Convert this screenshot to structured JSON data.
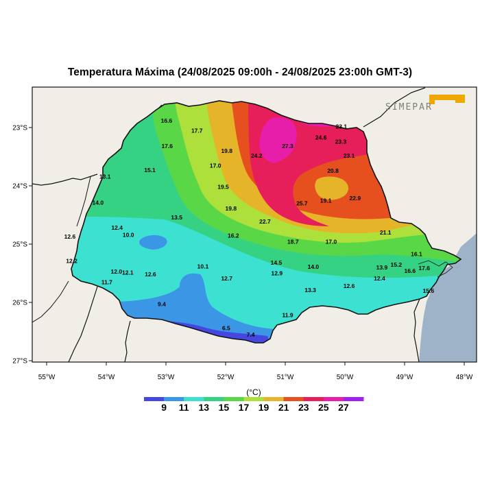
{
  "title": "Temperatura Máxima (24/08/2025 09:00h - 24/08/2025 23:00h GMT-3)",
  "logo": {
    "text": "SIMEPAR",
    "accent": "#f0a800"
  },
  "axes": {
    "lat_labels": [
      "23°S",
      "24°S",
      "25°S",
      "26°S",
      "27°S"
    ],
    "lon_labels": [
      "55°W",
      "54°W",
      "53°W",
      "52°W",
      "51°W",
      "50°W",
      "49°W",
      "48°W"
    ]
  },
  "colorbar": {
    "unit": "(°C)",
    "labels": [
      "9",
      "11",
      "13",
      "15",
      "17",
      "19",
      "21",
      "23",
      "25",
      "27"
    ],
    "colors": [
      "#4646e0",
      "#3c96e6",
      "#3ce1d2",
      "#35d283",
      "#5ad746",
      "#aee03c",
      "#e6b428",
      "#e6501e",
      "#e61e5a",
      "#e61eaa",
      "#a020f0"
    ]
  },
  "colors": {
    "land": "#f0eee6",
    "ocean": "#9eb3c8",
    "border": "#111111"
  },
  "station_values": [
    {
      "label": "16.6",
      "lon": -52.99,
      "lat": -22.88
    },
    {
      "label": "17.7",
      "lon": -52.48,
      "lat": -23.05
    },
    {
      "label": "17.6",
      "lon": -52.98,
      "lat": -23.32
    },
    {
      "label": "19.8",
      "lon": -51.98,
      "lat": -23.4
    },
    {
      "label": "27.3",
      "lon": -50.96,
      "lat": -23.32
    },
    {
      "label": "24.2",
      "lon": -51.48,
      "lat": -23.48
    },
    {
      "label": "24.6",
      "lon": -50.4,
      "lat": -23.17
    },
    {
      "label": "23.3",
      "lon": -50.07,
      "lat": -23.24
    },
    {
      "label": "23.1",
      "lon": -50.06,
      "lat": -22.98
    },
    {
      "label": "23.1",
      "lon": -49.93,
      "lat": -23.48
    },
    {
      "label": "17.0",
      "lon": -52.17,
      "lat": -23.65
    },
    {
      "label": "15.1",
      "lon": -53.27,
      "lat": -23.73
    },
    {
      "label": "13.1",
      "lon": -54.02,
      "lat": -23.84
    },
    {
      "label": "19.5",
      "lon": -52.04,
      "lat": -24.02
    },
    {
      "label": "20.8",
      "lon": -50.2,
      "lat": -23.74
    },
    {
      "label": "19.1",
      "lon": -50.32,
      "lat": -24.25
    },
    {
      "label": "22.9",
      "lon": -49.83,
      "lat": -24.21
    },
    {
      "label": "25.7",
      "lon": -50.72,
      "lat": -24.3
    },
    {
      "label": "14.0",
      "lon": -54.14,
      "lat": -24.29
    },
    {
      "label": "19.8",
      "lon": -51.91,
      "lat": -24.39
    },
    {
      "label": "13.5",
      "lon": -52.82,
      "lat": -24.54
    },
    {
      "label": "22.7",
      "lon": -51.34,
      "lat": -24.61
    },
    {
      "label": "12.4",
      "lon": -53.82,
      "lat": -24.72
    },
    {
      "label": "10.0",
      "lon": -53.63,
      "lat": -24.84
    },
    {
      "label": "12.6",
      "lon": -54.61,
      "lat": -24.87
    },
    {
      "label": "16.2",
      "lon": -51.87,
      "lat": -24.85
    },
    {
      "label": "21.1",
      "lon": -49.32,
      "lat": -24.8
    },
    {
      "label": "18.7",
      "lon": -50.87,
      "lat": -24.96
    },
    {
      "label": "17.0",
      "lon": -50.23,
      "lat": -24.96
    },
    {
      "label": "16.1",
      "lon": -48.8,
      "lat": -25.17
    },
    {
      "label": "12.2",
      "lon": -54.58,
      "lat": -25.29
    },
    {
      "label": "14.5",
      "lon": -51.15,
      "lat": -25.32
    },
    {
      "label": "15.2",
      "lon": -49.14,
      "lat": -25.35
    },
    {
      "label": "10.1",
      "lon": -52.38,
      "lat": -25.38
    },
    {
      "label": "14.0",
      "lon": -50.53,
      "lat": -25.39
    },
    {
      "label": "13.9",
      "lon": -49.38,
      "lat": -25.4
    },
    {
      "label": "17.6",
      "lon": -48.67,
      "lat": -25.41
    },
    {
      "label": "12.0",
      "lon": -53.83,
      "lat": -25.47
    },
    {
      "label": "12.1",
      "lon": -53.64,
      "lat": -25.49
    },
    {
      "label": "12.9",
      "lon": -51.14,
      "lat": -25.5
    },
    {
      "label": "16.6",
      "lon": -48.91,
      "lat": -25.46
    },
    {
      "label": "12.6",
      "lon": -53.26,
      "lat": -25.52
    },
    {
      "label": "12.7",
      "lon": -51.98,
      "lat": -25.59
    },
    {
      "label": "12.4",
      "lon": -49.42,
      "lat": -25.59
    },
    {
      "label": "11.7",
      "lon": -53.99,
      "lat": -25.65
    },
    {
      "label": "12.6",
      "lon": -49.93,
      "lat": -25.72
    },
    {
      "label": "13.3",
      "lon": -50.58,
      "lat": -25.79
    },
    {
      "label": "15.6",
      "lon": -48.6,
      "lat": -25.8
    },
    {
      "label": "9.4",
      "lon": -53.07,
      "lat": -26.03
    },
    {
      "label": "11.9",
      "lon": -50.96,
      "lat": -26.22
    },
    {
      "label": "6.5",
      "lon": -51.99,
      "lat": -26.44
    },
    {
      "label": "7.4",
      "lon": -51.58,
      "lat": -26.55
    }
  ]
}
